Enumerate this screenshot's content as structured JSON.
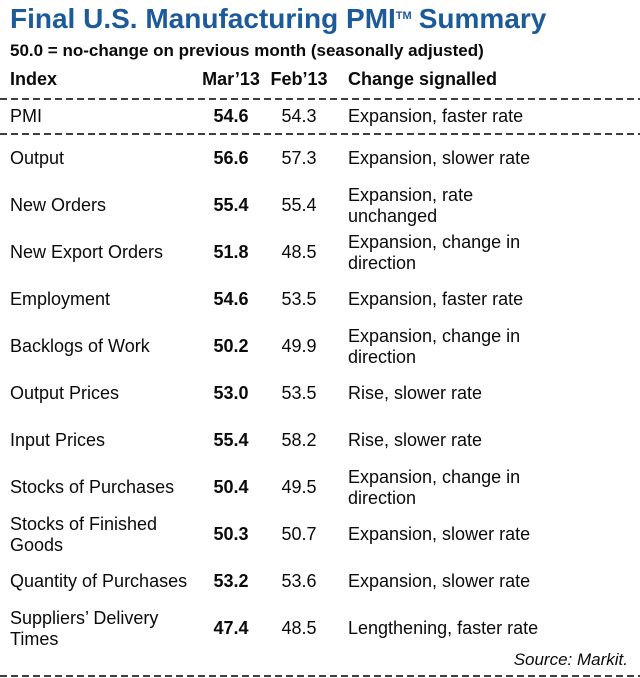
{
  "page": {
    "background": "#ffffff",
    "title_color": "#1c5a99",
    "text_color": "#0a0a0a",
    "separator_color": "#3f3f3f"
  },
  "header": {
    "title_main": "Final U.S. Manufacturing PMI",
    "title_tm": "TM",
    "title_rest": "Summary",
    "subtitle": "50.0 = no-change on previous month (seasonally adjusted)"
  },
  "table": {
    "col_index": "Index",
    "col_mar": "Mar’13",
    "col_feb": "Feb’13",
    "col_change": "Change signalled",
    "rows": [
      {
        "index": "PMI",
        "mar": "54.6",
        "feb": "54.3",
        "change": "Expansion, faster rate"
      },
      {
        "index": "Output",
        "mar": "56.6",
        "feb": "57.3",
        "change": "Expansion, slower rate"
      },
      {
        "index": "New Orders",
        "mar": "55.4",
        "feb": "55.4",
        "change": "Expansion, rate\nunchanged"
      },
      {
        "index": "New Export Orders",
        "mar": "51.8",
        "feb": "48.5",
        "change": "Expansion, change in\ndirection"
      },
      {
        "index": "Employment",
        "mar": "54.6",
        "feb": "53.5",
        "change": "Expansion, faster rate"
      },
      {
        "index": "Backlogs of Work",
        "mar": "50.2",
        "feb": "49.9",
        "change": "Expansion, change in\ndirection"
      },
      {
        "index": "Output Prices",
        "mar": "53.0",
        "feb": "53.5",
        "change": "Rise, slower rate"
      },
      {
        "index": "Input Prices",
        "mar": "55.4",
        "feb": "58.2",
        "change": "Rise, slower rate"
      },
      {
        "index": "Stocks of Purchases",
        "mar": "50.4",
        "feb": "49.5",
        "change": "Expansion, change in\ndirection"
      },
      {
        "index": "Stocks of Finished Goods",
        "mar": "50.3",
        "feb": "50.7",
        "change": "Expansion, slower rate"
      },
      {
        "index": "Quantity of Purchases",
        "mar": "53.2",
        "feb": "53.6",
        "change": "Expansion, slower rate"
      },
      {
        "index": "Suppliers’ Delivery Times",
        "mar": "47.4",
        "feb": "48.5",
        "change": "Lengthening, faster rate"
      }
    ]
  },
  "footer": {
    "source": "Source: Markit."
  },
  "chart_data": {
    "type": "table",
    "title": "Final U.S. Manufacturing PMI™ Summary",
    "subtitle": "50.0 = no-change on previous month (seasonally adjusted)",
    "columns": [
      "Index",
      "Mar’13",
      "Feb’13",
      "Change signalled"
    ],
    "rows": [
      [
        "PMI",
        54.6,
        54.3,
        "Expansion, faster rate"
      ],
      [
        "Output",
        56.6,
        57.3,
        "Expansion, slower rate"
      ],
      [
        "New Orders",
        55.4,
        55.4,
        "Expansion, rate unchanged"
      ],
      [
        "New Export Orders",
        51.8,
        48.5,
        "Expansion, change in direction"
      ],
      [
        "Employment",
        54.6,
        53.5,
        "Expansion, faster rate"
      ],
      [
        "Backlogs of Work",
        50.2,
        49.9,
        "Expansion, change in direction"
      ],
      [
        "Output Prices",
        53.0,
        53.5,
        "Rise, slower rate"
      ],
      [
        "Input Prices",
        55.4,
        58.2,
        "Rise, slower rate"
      ],
      [
        "Stocks of Purchases",
        50.4,
        49.5,
        "Expansion, change in direction"
      ],
      [
        "Stocks of Finished Goods",
        50.3,
        50.7,
        "Expansion, slower rate"
      ],
      [
        "Quantity of Purchases",
        53.2,
        53.6,
        "Expansion, slower rate"
      ],
      [
        "Suppliers’ Delivery Times",
        47.4,
        48.5,
        "Lengthening, faster rate"
      ]
    ],
    "source": "Source: Markit.",
    "notes": "Mar’13 column rendered bold; 50.0 = no-change threshold"
  }
}
